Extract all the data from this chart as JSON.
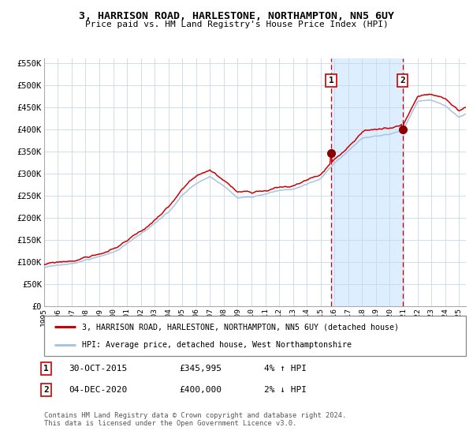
{
  "title": "3, HARRISON ROAD, HARLESTONE, NORTHAMPTON, NN5 6UY",
  "subtitle": "Price paid vs. HM Land Registry's House Price Index (HPI)",
  "ylim": [
    0,
    560000
  ],
  "yticks": [
    0,
    50000,
    100000,
    150000,
    200000,
    250000,
    300000,
    350000,
    400000,
    450000,
    500000,
    550000
  ],
  "ytick_labels": [
    "£0",
    "£50K",
    "£100K",
    "£150K",
    "£200K",
    "£250K",
    "£300K",
    "£350K",
    "£400K",
    "£450K",
    "£500K",
    "£550K"
  ],
  "hpi_color": "#a8c4e0",
  "price_color": "#cc0000",
  "marker_color": "#8b0000",
  "vline_color": "#cc0000",
  "shade_color": "#ddeeff",
  "grid_color": "#c8d8e8",
  "bg_color": "#ffffff",
  "legend1": "3, HARRISON ROAD, HARLESTONE, NORTHAMPTON, NN5 6UY (detached house)",
  "legend2": "HPI: Average price, detached house, West Northamptonshire",
  "footer": "Contains HM Land Registry data © Crown copyright and database right 2024.\nThis data is licensed under the Open Government Licence v3.0.",
  "pt1_year": 2015,
  "pt1_month": 10,
  "pt1_value": 345995,
  "pt2_year": 2020,
  "pt2_month": 12,
  "pt2_value": 400000,
  "ann1_date": "30-OCT-2015",
  "ann1_price": "£345,995",
  "ann1_hpi": "4% ↑ HPI",
  "ann2_date": "04-DEC-2020",
  "ann2_price": "£400,000",
  "ann2_hpi": "2% ↓ HPI"
}
